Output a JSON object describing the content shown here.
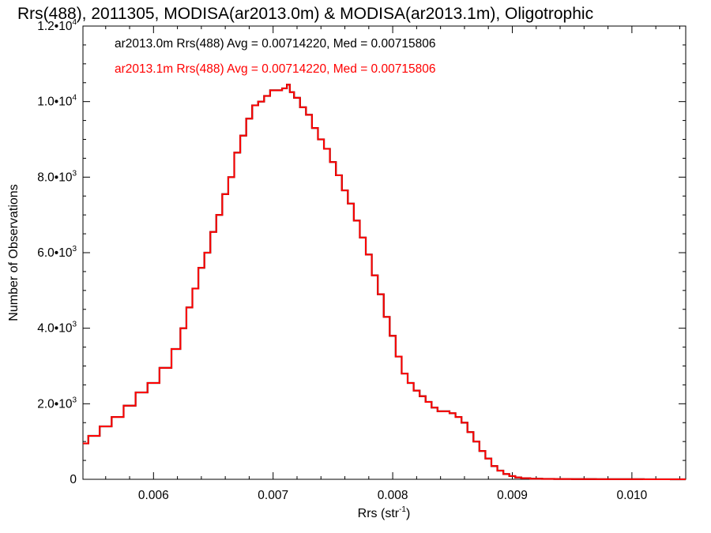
{
  "chart_data": {
    "type": "line",
    "title": "Rrs(488), 2011305, MODISA(ar2013.0m) & MODISA(ar2013.1m), Oligotrophic",
    "xlabel": "Rrs (str",
    "xlabel_sup": "-1",
    "xlabel_close": ")",
    "ylabel": "Number of Observations",
    "xlim": [
      0.00541,
      0.01045
    ],
    "ylim": [
      0,
      12000
    ],
    "x_ticks": [
      {
        "value": 0.006,
        "label": "0.006"
      },
      {
        "value": 0.007,
        "label": "0.007"
      },
      {
        "value": 0.008,
        "label": "0.008"
      },
      {
        "value": 0.009,
        "label": "0.009"
      },
      {
        "value": 0.01,
        "label": "0.010"
      }
    ],
    "y_ticks": [
      {
        "value": 0,
        "mant": "0",
        "exp": ""
      },
      {
        "value": 2000,
        "mant": "2.0•10",
        "exp": "3"
      },
      {
        "value": 4000,
        "mant": "4.0•10",
        "exp": "3"
      },
      {
        "value": 6000,
        "mant": "6.0•10",
        "exp": "3"
      },
      {
        "value": 8000,
        "mant": "8.0•10",
        "exp": "3"
      },
      {
        "value": 10000,
        "mant": "1.0•10",
        "exp": "4"
      },
      {
        "value": 12000,
        "mant": "1.2•10",
        "exp": "4"
      }
    ],
    "grid": false,
    "legend_position": "top-left",
    "series": [
      {
        "name": "ar2013.0m",
        "label": "ar2013.0m Rrs(488) Avg = 0.00714220, Med = 0.00715806",
        "color": "#000000",
        "x": [
          0.00541,
          0.0055,
          0.0056,
          0.0057,
          0.0058,
          0.0059,
          0.006,
          0.0061,
          0.0062,
          0.00625,
          0.0063,
          0.00635,
          0.0064,
          0.00645,
          0.0065,
          0.00655,
          0.0066,
          0.00665,
          0.0067,
          0.00675,
          0.0068,
          0.00685,
          0.0069,
          0.00695,
          0.007,
          0.00705,
          0.0071,
          0.00713,
          0.00715,
          0.0072,
          0.00725,
          0.0073,
          0.00735,
          0.0074,
          0.00745,
          0.0075,
          0.00755,
          0.0076,
          0.00765,
          0.0077,
          0.00775,
          0.0078,
          0.00785,
          0.0079,
          0.00795,
          0.008,
          0.00805,
          0.0081,
          0.00815,
          0.0082,
          0.00825,
          0.0083,
          0.00835,
          0.0084,
          0.00845,
          0.0085,
          0.00855,
          0.0086,
          0.00865,
          0.0087,
          0.00875,
          0.0088,
          0.00885,
          0.0089,
          0.00895,
          0.009,
          0.00905,
          0.0091,
          0.0092,
          0.0093,
          0.0094,
          0.0096,
          0.0098,
          0.01,
          0.0102,
          0.01045
        ],
        "y": [
          950,
          1150,
          1400,
          1650,
          1950,
          2300,
          2550,
          2950,
          3450,
          4000,
          4550,
          5050,
          5600,
          6000,
          6550,
          7000,
          7550,
          8000,
          8650,
          9100,
          9550,
          9900,
          10000,
          10150,
          10300,
          10300,
          10350,
          10450,
          10250,
          10100,
          9850,
          9650,
          9300,
          9000,
          8750,
          8400,
          8050,
          7650,
          7300,
          6850,
          6400,
          5950,
          5400,
          4900,
          4300,
          3800,
          3250,
          2800,
          2550,
          2350,
          2200,
          2050,
          1900,
          1800,
          1800,
          1750,
          1650,
          1500,
          1250,
          1000,
          750,
          550,
          350,
          230,
          140,
          85,
          50,
          30,
          15,
          10,
          8,
          5,
          3,
          2,
          1,
          0
        ]
      },
      {
        "name": "ar2013.1m",
        "label": "ar2013.1m Rrs(488) Avg = 0.00714220, Med = 0.00715806",
        "color": "#ff0000",
        "x": [
          0.00541,
          0.0055,
          0.0056,
          0.0057,
          0.0058,
          0.0059,
          0.006,
          0.0061,
          0.0062,
          0.00625,
          0.0063,
          0.00635,
          0.0064,
          0.00645,
          0.0065,
          0.00655,
          0.0066,
          0.00665,
          0.0067,
          0.00675,
          0.0068,
          0.00685,
          0.0069,
          0.00695,
          0.007,
          0.00705,
          0.0071,
          0.00713,
          0.00715,
          0.0072,
          0.00725,
          0.0073,
          0.00735,
          0.0074,
          0.00745,
          0.0075,
          0.00755,
          0.0076,
          0.00765,
          0.0077,
          0.00775,
          0.0078,
          0.00785,
          0.0079,
          0.00795,
          0.008,
          0.00805,
          0.0081,
          0.00815,
          0.0082,
          0.00825,
          0.0083,
          0.00835,
          0.0084,
          0.00845,
          0.0085,
          0.00855,
          0.0086,
          0.00865,
          0.0087,
          0.00875,
          0.0088,
          0.00885,
          0.0089,
          0.00895,
          0.009,
          0.00905,
          0.0091,
          0.0092,
          0.0093,
          0.0094,
          0.0096,
          0.0098,
          0.01,
          0.0102,
          0.01045
        ],
        "y": [
          950,
          1150,
          1400,
          1650,
          1950,
          2300,
          2550,
          2950,
          3450,
          4000,
          4550,
          5050,
          5600,
          6000,
          6550,
          7000,
          7550,
          8000,
          8650,
          9100,
          9550,
          9900,
          10000,
          10150,
          10300,
          10300,
          10350,
          10450,
          10250,
          10100,
          9850,
          9650,
          9300,
          9000,
          8750,
          8400,
          8050,
          7650,
          7300,
          6850,
          6400,
          5950,
          5400,
          4900,
          4300,
          3800,
          3250,
          2800,
          2550,
          2350,
          2200,
          2050,
          1900,
          1800,
          1800,
          1750,
          1650,
          1500,
          1250,
          1000,
          750,
          550,
          350,
          230,
          140,
          85,
          50,
          30,
          15,
          10,
          8,
          5,
          3,
          2,
          1,
          0
        ]
      }
    ]
  }
}
